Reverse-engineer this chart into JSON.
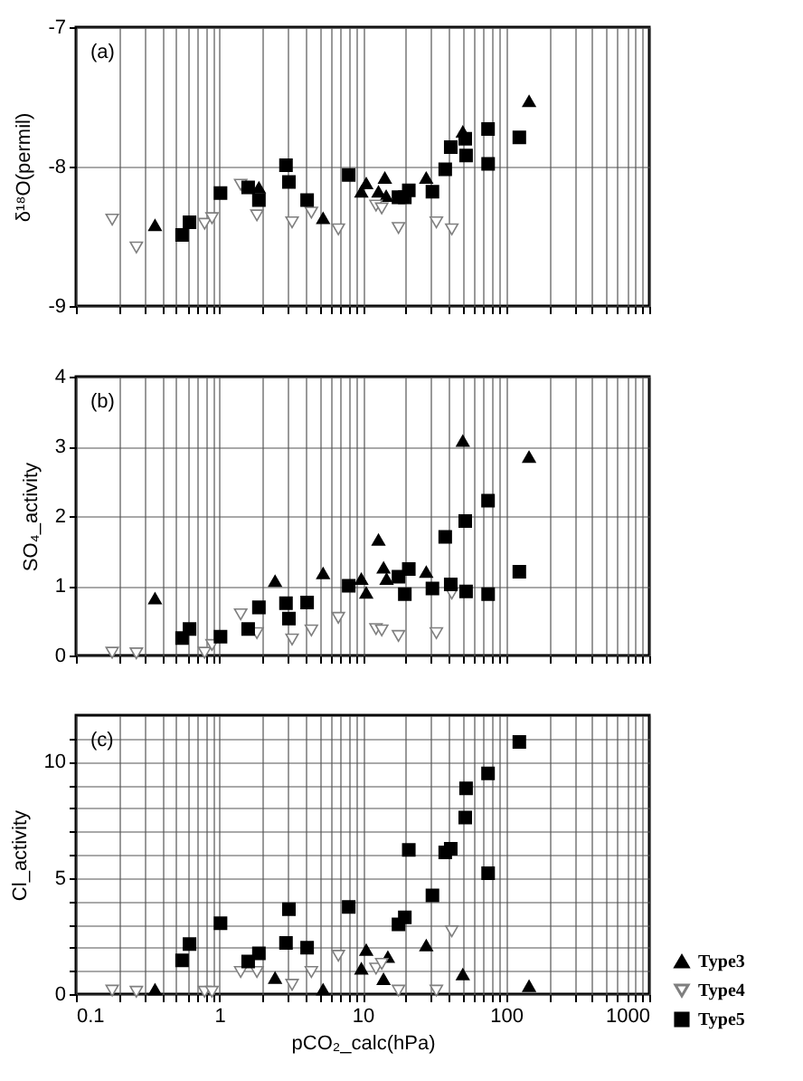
{
  "chart_data": [
    {
      "type": "scatter",
      "ylabel": "δ¹⁸O(permil)",
      "annotations": [
        "(a)"
      ],
      "xlim": [
        0.1,
        1000
      ],
      "ylim": [
        -9,
        -7
      ],
      "yticks": [
        -9,
        -8,
        -7
      ],
      "log": "x",
      "grid": true,
      "tick_labels": "y",
      "legend": false,
      "xticks": [
        0.1,
        {
          "value": 0.2,
          "label": null
        },
        {
          "value": 0.3,
          "label": null
        },
        {
          "value": 0.4,
          "label": null
        },
        {
          "value": 0.5,
          "label": null
        },
        {
          "value": 0.6,
          "label": null
        },
        {
          "value": 0.7,
          "label": null
        },
        {
          "value": 0.8,
          "label": null
        },
        {
          "value": 0.9,
          "label": null
        },
        1,
        {
          "value": 2,
          "label": null
        },
        {
          "value": 3,
          "label": null
        },
        {
          "value": 4,
          "label": null
        },
        {
          "value": 5,
          "label": null
        },
        {
          "value": 6,
          "label": null
        },
        {
          "value": 7,
          "label": null
        },
        {
          "value": 8,
          "label": null
        },
        {
          "value": 9,
          "label": null
        },
        10,
        {
          "value": 20,
          "label": null
        },
        {
          "value": 30,
          "label": null
        },
        {
          "value": 40,
          "label": null
        },
        {
          "value": 50,
          "label": null
        },
        {
          "value": 60,
          "label": null
        },
        {
          "value": 70,
          "label": null
        },
        {
          "value": 80,
          "label": null
        },
        {
          "value": 90,
          "label": null
        },
        100,
        {
          "value": 200,
          "label": null
        },
        {
          "value": 300,
          "label": null
        },
        {
          "value": 400,
          "label": null
        },
        {
          "value": 500,
          "label": null
        },
        {
          "value": 600,
          "label": null
        },
        {
          "value": 700,
          "label": null
        },
        {
          "value": 800,
          "label": null
        },
        {
          "value": 900,
          "label": null
        },
        1000
      ],
      "series": [
        {
          "color": "#000000",
          "marker": "triangle",
          "x": [
            0.356,
            1.89,
            5.3,
            9.8,
            10.6,
            12.9,
            14.3,
            14.6,
            27.8,
            50,
            145
          ],
          "values": [
            -8.42,
            -8.15,
            -8.37,
            -8.18,
            -8.12,
            -8.18,
            -8.08,
            -8.21,
            -8.08,
            -7.75,
            -7.53
          ]
        },
        {
          "color": "#7f7f7f",
          "marker": "triangle-down",
          "x": [
            0.179,
            0.264,
            0.79,
            0.89,
            1.41,
            1.83,
            3.22,
            4.39,
            6.77,
            12.4,
            13.6,
            17.8,
            32.7,
            41.9
          ],
          "values": [
            -8.38,
            -8.58,
            -8.41,
            -8.37,
            -8.13,
            -8.35,
            -8.4,
            -8.33,
            -8.45,
            -8.28,
            -8.3,
            -8.44,
            -8.4,
            -8.45
          ]
        },
        {
          "color": "#000000",
          "marker": "square",
          "x": [
            0.55,
            0.62,
            1.02,
            1.59,
            1.89,
            2.92,
            3.06,
            4.1,
            8.0,
            17.8,
            19.7,
            21,
            30.7,
            37.7,
            41.2,
            52,
            52.7,
            75,
            75.1,
            124
          ],
          "values": [
            -8.49,
            -8.4,
            -8.19,
            -8.15,
            -8.24,
            -7.99,
            -8.11,
            -8.24,
            -8.06,
            -8.22,
            -8.22,
            -8.17,
            -8.18,
            -8.02,
            -7.86,
            -7.8,
            -7.92,
            -7.73,
            -7.98,
            -7.79
          ]
        }
      ]
    },
    {
      "type": "scatter",
      "ylabel": "SO₄_activity",
      "annotations": [
        "(b)"
      ],
      "xlim": [
        0.1,
        1000
      ],
      "ylim": [
        0,
        4
      ],
      "yticks": [
        0,
        1,
        2,
        3,
        4
      ],
      "log": "x",
      "grid": true,
      "tick_labels": "y",
      "legend": false,
      "xticks": [
        0.1,
        {
          "value": 0.2,
          "label": null
        },
        {
          "value": 0.3,
          "label": null
        },
        {
          "value": 0.4,
          "label": null
        },
        {
          "value": 0.5,
          "label": null
        },
        {
          "value": 0.6,
          "label": null
        },
        {
          "value": 0.7,
          "label": null
        },
        {
          "value": 0.8,
          "label": null
        },
        {
          "value": 0.9,
          "label": null
        },
        1,
        {
          "value": 2,
          "label": null
        },
        {
          "value": 3,
          "label": null
        },
        {
          "value": 4,
          "label": null
        },
        {
          "value": 5,
          "label": null
        },
        {
          "value": 6,
          "label": null
        },
        {
          "value": 7,
          "label": null
        },
        {
          "value": 8,
          "label": null
        },
        {
          "value": 9,
          "label": null
        },
        10,
        {
          "value": 20,
          "label": null
        },
        {
          "value": 30,
          "label": null
        },
        {
          "value": 40,
          "label": null
        },
        {
          "value": 50,
          "label": null
        },
        {
          "value": 60,
          "label": null
        },
        {
          "value": 70,
          "label": null
        },
        {
          "value": 80,
          "label": null
        },
        {
          "value": 90,
          "label": null
        },
        100,
        {
          "value": 200,
          "label": null
        },
        {
          "value": 300,
          "label": null
        },
        {
          "value": 400,
          "label": null
        },
        {
          "value": 500,
          "label": null
        },
        {
          "value": 600,
          "label": null
        },
        {
          "value": 700,
          "label": null
        },
        {
          "value": 800,
          "label": null
        },
        {
          "value": 900,
          "label": null
        },
        1000
      ],
      "series": [
        {
          "color": "#000000",
          "marker": "triangle",
          "x": [
            0.356,
            2.45,
            5.3,
            9.8,
            10.6,
            12.9,
            14.0,
            14.7,
            27.8,
            50,
            145
          ],
          "values": [
            0.82,
            1.07,
            1.18,
            1.1,
            0.9,
            1.66,
            1.26,
            1.1,
            1.2,
            3.08,
            2.85
          ]
        },
        {
          "color": "#7f7f7f",
          "marker": "triangle-down",
          "x": [
            0.179,
            0.264,
            0.79,
            0.89,
            1.41,
            1.83,
            3.22,
            4.39,
            6.77,
            12.4,
            13.6,
            17.8,
            32.7,
            41.9
          ],
          "values": [
            0.04,
            0.03,
            0.04,
            0.15,
            0.59,
            0.32,
            0.23,
            0.36,
            0.54,
            0.38,
            0.36,
            0.28,
            0.32,
            0.89
          ]
        },
        {
          "color": "#000000",
          "marker": "square",
          "x": [
            0.55,
            0.62,
            1.02,
            1.59,
            1.89,
            2.92,
            3.06,
            4.1,
            8.0,
            17.8,
            19.7,
            21,
            30.7,
            37.7,
            41.2,
            52,
            52.7,
            75,
            75.1,
            124
          ],
          "values": [
            0.25,
            0.38,
            0.27,
            0.38,
            0.69,
            0.75,
            0.53,
            0.76,
            1.0,
            1.13,
            0.88,
            1.24,
            0.96,
            1.7,
            1.02,
            1.93,
            0.92,
            2.22,
            0.88,
            1.2
          ]
        }
      ]
    },
    {
      "type": "scatter",
      "xlabel": "pCO₂_calc(hPa)",
      "ylabel": "Cl_activity",
      "annotations": [
        "(c)"
      ],
      "xlim": [
        0.1,
        1000
      ],
      "ylim": [
        0,
        12
      ],
      "yticks": [
        0,
        {
          "value": 1,
          "label": null
        },
        {
          "value": 2,
          "label": null
        },
        {
          "value": 3,
          "label": null
        },
        {
          "value": 4,
          "label": null
        },
        5,
        {
          "value": 6,
          "label": null
        },
        {
          "value": 7,
          "label": null
        },
        {
          "value": 8,
          "label": null
        },
        {
          "value": 9,
          "label": null
        },
        10,
        {
          "value": 11,
          "label": null
        }
      ],
      "log": "x",
      "grid": true,
      "legend": "right",
      "xticks": [
        0.1,
        {
          "value": 0.2,
          "label": null
        },
        {
          "value": 0.3,
          "label": null
        },
        {
          "value": 0.4,
          "label": null
        },
        {
          "value": 0.5,
          "label": null
        },
        {
          "value": 0.6,
          "label": null
        },
        {
          "value": 0.7,
          "label": null
        },
        {
          "value": 0.8,
          "label": null
        },
        {
          "value": 0.9,
          "label": null
        },
        1,
        {
          "value": 2,
          "label": null
        },
        {
          "value": 3,
          "label": null
        },
        {
          "value": 4,
          "label": null
        },
        {
          "value": 5,
          "label": null
        },
        {
          "value": 6,
          "label": null
        },
        {
          "value": 7,
          "label": null
        },
        {
          "value": 8,
          "label": null
        },
        {
          "value": 9,
          "label": null
        },
        10,
        {
          "value": 20,
          "label": null
        },
        {
          "value": 30,
          "label": null
        },
        {
          "value": 40,
          "label": null
        },
        {
          "value": 50,
          "label": null
        },
        {
          "value": 60,
          "label": null
        },
        {
          "value": 70,
          "label": null
        },
        {
          "value": 80,
          "label": null
        },
        {
          "value": 90,
          "label": null
        },
        100,
        {
          "value": 200,
          "label": null
        },
        {
          "value": 300,
          "label": null
        },
        {
          "value": 400,
          "label": null
        },
        {
          "value": 500,
          "label": null
        },
        {
          "value": 600,
          "label": null
        },
        {
          "value": 700,
          "label": null
        },
        {
          "value": 800,
          "label": null
        },
        {
          "value": 900,
          "label": null
        },
        1000
      ],
      "series": [
        {
          "name": "Type3",
          "color": "#000000",
          "marker": "triangle",
          "x": [
            0.356,
            2.45,
            5.3,
            9.8,
            10.6,
            14.0,
            15.0,
            27.8,
            50,
            145
          ],
          "values": [
            0.2,
            0.7,
            0.2,
            1.1,
            1.9,
            0.65,
            1.6,
            2.1,
            0.85,
            0.35
          ]
        },
        {
          "name": "Type4",
          "color": "#7f7f7f",
          "marker": "triangle-down",
          "x": [
            0.179,
            0.264,
            0.79,
            0.89,
            1.41,
            1.83,
            3.22,
            4.39,
            6.77,
            12.4,
            13.6,
            17.8,
            32.7,
            41.9
          ],
          "values": [
            0.15,
            0.1,
            0.1,
            0.1,
            0.95,
            0.95,
            0.4,
            0.95,
            1.65,
            1.1,
            1.3,
            0.15,
            0.15,
            2.7
          ]
        },
        {
          "name": "Type5",
          "color": "#000000",
          "marker": "square",
          "x": [
            0.55,
            0.62,
            1.02,
            1.59,
            1.89,
            2.92,
            3.06,
            4.1,
            8.0,
            17.8,
            19.7,
            21,
            30.7,
            37.7,
            41.2,
            52,
            52.7,
            75,
            75.1,
            124
          ],
          "values": [
            1.45,
            2.15,
            3.05,
            1.4,
            1.75,
            2.2,
            3.65,
            2.0,
            3.75,
            3.0,
            3.3,
            6.2,
            4.25,
            6.1,
            6.25,
            7.6,
            8.85,
            9.5,
            5.2,
            10.85
          ]
        }
      ]
    }
  ]
}
